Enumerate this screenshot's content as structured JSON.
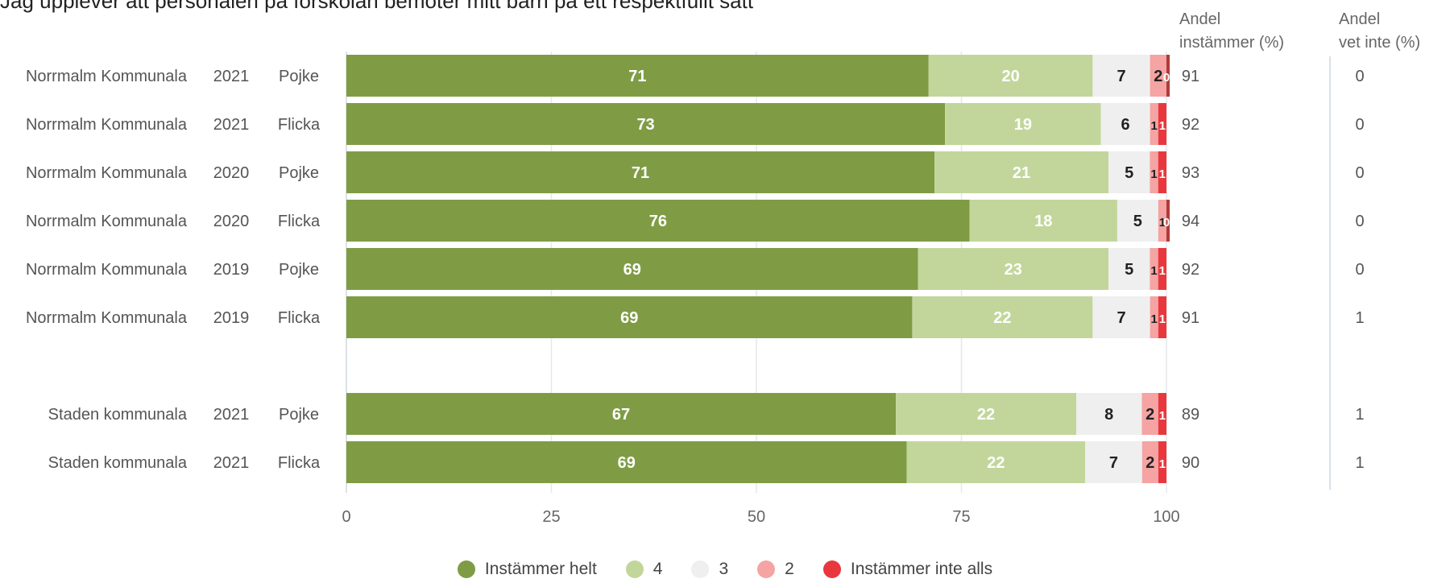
{
  "title": "Jag upplever att personalen på förskolan bemöter mitt barn på ett respektfullt sätt",
  "header_agree": [
    "Andel",
    "instämmer (%)"
  ],
  "header_dontknow": [
    "Andel",
    "vet inte (%)"
  ],
  "colors": {
    "Instämmer helt": "#7f9c45",
    "4": "#c2d69b",
    "3": "#efefef",
    "2": "#f5a3a3",
    "Instämmer inte alls": "#e8383d",
    "small": "#b03a3a"
  },
  "chart_data": {
    "type": "bar",
    "orientation": "horizontal",
    "stacked": true,
    "xlim": [
      0,
      100
    ],
    "xticks": [
      0,
      25,
      50,
      75,
      100
    ],
    "grid": true,
    "legend_position": "bottom",
    "legend": [
      "Instämmer helt",
      "4",
      "3",
      "2",
      "Instämmer inte alls"
    ],
    "rows": [
      {
        "unit": "Norrmalm Kommunala",
        "year": "2021",
        "gender": "Pojke",
        "values": [
          71,
          20,
          7,
          2,
          0
        ],
        "agree": "91",
        "dont_know": "0",
        "labels": [
          "71",
          "20",
          "7",
          "2",
          "0"
        ]
      },
      {
        "unit": "Norrmalm Kommunala",
        "year": "2021",
        "gender": "Flicka",
        "values": [
          73,
          19,
          6,
          1,
          1
        ],
        "agree": "92",
        "dont_know": "0",
        "labels": [
          "73",
          "19",
          "6",
          "1",
          "1"
        ]
      },
      {
        "unit": "Norrmalm Kommunala",
        "year": "2020",
        "gender": "Pojke",
        "values": [
          71,
          21,
          5,
          1,
          1
        ],
        "agree": "93",
        "dont_know": "0",
        "labels": [
          "71",
          "21",
          "5",
          "1",
          "1"
        ]
      },
      {
        "unit": "Norrmalm Kommunala",
        "year": "2020",
        "gender": "Flicka",
        "values": [
          76,
          18,
          5,
          1,
          0
        ],
        "agree": "94",
        "dont_know": "0",
        "labels": [
          "76",
          "18",
          "5",
          "1",
          "0"
        ]
      },
      {
        "unit": "Norrmalm Kommunala",
        "year": "2019",
        "gender": "Pojke",
        "values": [
          69,
          23,
          5,
          1,
          1
        ],
        "agree": "92",
        "dont_know": "0",
        "labels": [
          "69",
          "23",
          "5",
          "1",
          "1"
        ]
      },
      {
        "unit": "Norrmalm Kommunala",
        "year": "2019",
        "gender": "Flicka",
        "values": [
          69,
          22,
          7,
          1,
          1
        ],
        "agree": "91",
        "dont_know": "1",
        "labels": [
          "69",
          "22",
          "7",
          "1",
          "1"
        ]
      },
      {
        "spacer": true
      },
      {
        "unit": "Staden kommunala",
        "year": "2021",
        "gender": "Pojke",
        "values": [
          67,
          22,
          8,
          2,
          1
        ],
        "agree": "89",
        "dont_know": "1",
        "labels": [
          "67",
          "22",
          "8",
          "2",
          "1"
        ]
      },
      {
        "unit": "Staden kommunala",
        "year": "2021",
        "gender": "Flicka",
        "values": [
          69,
          22,
          7,
          2,
          1
        ],
        "agree": "90",
        "dont_know": "1",
        "labels": [
          "69",
          "22",
          "7",
          "2",
          "1"
        ]
      }
    ]
  }
}
